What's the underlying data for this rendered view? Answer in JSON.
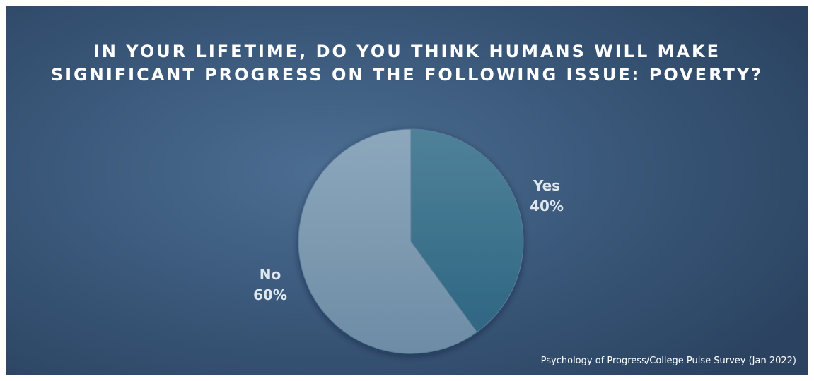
{
  "chart_data": {
    "type": "pie",
    "title": "IN YOUR LIFETIME, DO YOU THINK HUMANS WILL MAKE SIGNIFICANT PROGRESS ON THE FOLLOWING ISSUE: POVERTY?",
    "slices": [
      {
        "label": "Yes",
        "value": 40,
        "value_label": "40%",
        "color": "#3b7290"
      },
      {
        "label": "No",
        "value": 60,
        "value_label": "60%",
        "color": "#7f9cb2"
      }
    ],
    "start_angle_deg": 0,
    "direction": "clockwise",
    "legend": "none",
    "data_labels": "outside, category name and percentage"
  },
  "source": "Psychology of Progress/College Pulse Survey (Jan 2022)",
  "colors": {
    "background_center": "#4c6e92",
    "background_edge": "#2b4361",
    "title": "#ffffff",
    "labels": "#dfe7ef"
  }
}
